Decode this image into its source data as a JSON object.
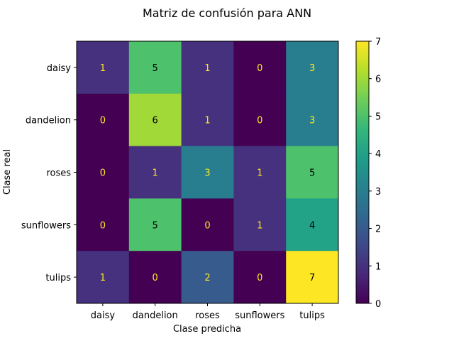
{
  "chart_data": {
    "type": "heatmap",
    "title": "Matriz de confusión para ANN",
    "xlabel": "Clase predicha",
    "ylabel": "Clase real",
    "x_categories": [
      "daisy",
      "dandelion",
      "roses",
      "sunflowers",
      "tulips"
    ],
    "y_categories": [
      "daisy",
      "dandelion",
      "roses",
      "sunflowers",
      "tulips"
    ],
    "values": [
      [
        1,
        5,
        1,
        0,
        3
      ],
      [
        0,
        6,
        1,
        0,
        3
      ],
      [
        0,
        1,
        3,
        1,
        5
      ],
      [
        0,
        5,
        0,
        1,
        4
      ],
      [
        1,
        0,
        2,
        0,
        7
      ]
    ],
    "colorbar": {
      "min": 0,
      "max": 7,
      "ticks": [
        0,
        1,
        2,
        3,
        4,
        5,
        6,
        7
      ]
    },
    "colormap": "viridis",
    "grid": false
  }
}
